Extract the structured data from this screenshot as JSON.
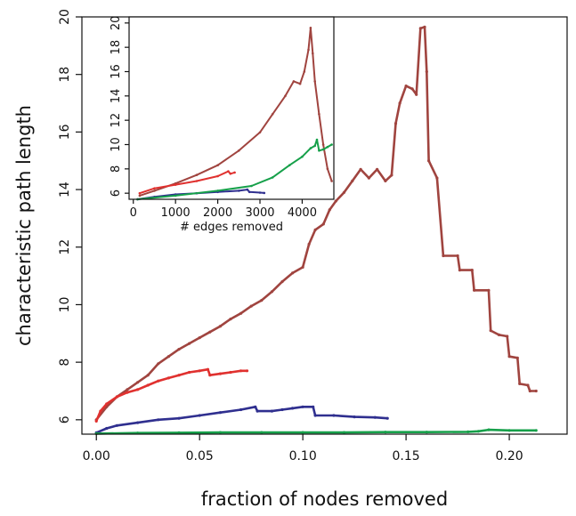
{
  "chart_data": [
    {
      "type": "line",
      "xlabel": "fraction of nodes removed",
      "ylabel": "characteristic path length",
      "xlim": [
        -0.007,
        0.228
      ],
      "ylim": [
        5.5,
        20.0
      ],
      "xticks": [
        0.0,
        0.05,
        0.1,
        0.15,
        0.2
      ],
      "xtick_labels": [
        "0.00",
        "0.05",
        "0.10",
        "0.15",
        "0.20"
      ],
      "yticks": [
        6,
        8,
        10,
        12,
        14,
        16,
        18,
        20
      ],
      "ytick_labels": [
        "6",
        "8",
        "10",
        "12",
        "14",
        "16",
        "18",
        "20"
      ],
      "grid": false,
      "series": [
        {
          "color": "#a0443f",
          "points": [
            [
              0.0,
              6.0
            ],
            [
              0.005,
              6.45
            ],
            [
              0.01,
              6.8
            ],
            [
              0.015,
              7.05
            ],
            [
              0.02,
              7.3
            ],
            [
              0.025,
              7.55
            ],
            [
              0.03,
              7.95
            ],
            [
              0.035,
              8.2
            ],
            [
              0.04,
              8.45
            ],
            [
              0.045,
              8.65
            ],
            [
              0.05,
              8.85
            ],
            [
              0.055,
              9.05
            ],
            [
              0.06,
              9.25
            ],
            [
              0.065,
              9.5
            ],
            [
              0.07,
              9.7
            ],
            [
              0.075,
              9.95
            ],
            [
              0.08,
              10.15
            ],
            [
              0.085,
              10.45
            ],
            [
              0.09,
              10.8
            ],
            [
              0.095,
              11.1
            ],
            [
              0.1,
              11.3
            ],
            [
              0.103,
              12.1
            ],
            [
              0.106,
              12.6
            ],
            [
              0.11,
              12.8
            ],
            [
              0.113,
              13.3
            ],
            [
              0.116,
              13.6
            ],
            [
              0.12,
              13.9
            ],
            [
              0.124,
              14.3
            ],
            [
              0.128,
              14.7
            ],
            [
              0.132,
              14.4
            ],
            [
              0.136,
              14.7
            ],
            [
              0.14,
              14.3
            ],
            [
              0.143,
              14.5
            ],
            [
              0.145,
              16.3
            ],
            [
              0.147,
              17.0
            ],
            [
              0.15,
              17.6
            ],
            [
              0.153,
              17.5
            ],
            [
              0.155,
              17.3
            ],
            [
              0.157,
              19.6
            ],
            [
              0.159,
              19.65
            ],
            [
              0.16,
              18.1
            ],
            [
              0.161,
              15.0
            ],
            [
              0.165,
              14.4
            ],
            [
              0.168,
              11.7
            ],
            [
              0.175,
              11.7
            ],
            [
              0.176,
              11.2
            ],
            [
              0.182,
              11.2
            ],
            [
              0.183,
              10.5
            ],
            [
              0.19,
              10.5
            ],
            [
              0.191,
              9.1
            ],
            [
              0.195,
              8.95
            ],
            [
              0.199,
              8.9
            ],
            [
              0.2,
              8.2
            ],
            [
              0.204,
              8.15
            ],
            [
              0.205,
              7.25
            ],
            [
              0.209,
              7.2
            ],
            [
              0.21,
              7.0
            ],
            [
              0.213,
              7.0
            ]
          ]
        },
        {
          "color": "#e0312f",
          "points": [
            [
              0.0,
              5.95
            ],
            [
              0.002,
              6.3
            ],
            [
              0.005,
              6.55
            ],
            [
              0.01,
              6.8
            ],
            [
              0.015,
              6.95
            ],
            [
              0.02,
              7.05
            ],
            [
              0.025,
              7.2
            ],
            [
              0.03,
              7.35
            ],
            [
              0.035,
              7.45
            ],
            [
              0.04,
              7.55
            ],
            [
              0.045,
              7.65
            ],
            [
              0.05,
              7.7
            ],
            [
              0.054,
              7.75
            ],
            [
              0.055,
              7.55
            ],
            [
              0.06,
              7.6
            ],
            [
              0.065,
              7.65
            ],
            [
              0.07,
              7.7
            ],
            [
              0.073,
              7.7
            ]
          ]
        },
        {
          "color": "#2f2f8f",
          "points": [
            [
              0.0,
              5.55
            ],
            [
              0.005,
              5.7
            ],
            [
              0.01,
              5.8
            ],
            [
              0.02,
              5.9
            ],
            [
              0.03,
              6.0
            ],
            [
              0.04,
              6.05
            ],
            [
              0.05,
              6.15
            ],
            [
              0.06,
              6.25
            ],
            [
              0.07,
              6.35
            ],
            [
              0.077,
              6.45
            ],
            [
              0.078,
              6.3
            ],
            [
              0.085,
              6.3
            ],
            [
              0.09,
              6.35
            ],
            [
              0.095,
              6.4
            ],
            [
              0.1,
              6.45
            ],
            [
              0.105,
              6.45
            ],
            [
              0.106,
              6.15
            ],
            [
              0.115,
              6.15
            ],
            [
              0.125,
              6.1
            ],
            [
              0.135,
              6.08
            ],
            [
              0.141,
              6.05
            ]
          ]
        },
        {
          "color": "#16a04a",
          "points": [
            [
              0.0,
              5.52
            ],
            [
              0.02,
              5.54
            ],
            [
              0.04,
              5.55
            ],
            [
              0.06,
              5.56
            ],
            [
              0.08,
              5.56
            ],
            [
              0.1,
              5.56
            ],
            [
              0.12,
              5.56
            ],
            [
              0.14,
              5.57
            ],
            [
              0.16,
              5.57
            ],
            [
              0.18,
              5.58
            ],
            [
              0.185,
              5.6
            ],
            [
              0.19,
              5.65
            ],
            [
              0.2,
              5.63
            ],
            [
              0.213,
              5.63
            ]
          ]
        }
      ]
    },
    {
      "type": "line",
      "xlabel": "# edges removed",
      "ylabel": "",
      "xlim": [
        -100,
        4750
      ],
      "ylim": [
        5.5,
        20.5
      ],
      "xticks": [
        0,
        1000,
        2000,
        3000,
        4000
      ],
      "xtick_labels": [
        "0",
        "1000",
        "2000",
        "3000",
        "4000"
      ],
      "yticks": [
        6,
        8,
        10,
        12,
        14,
        16,
        18,
        20
      ],
      "ytick_labels": [
        "6",
        "8",
        "10",
        "12",
        "14",
        "16",
        "18",
        "20"
      ],
      "grid": false,
      "series": [
        {
          "color": "#a0443f",
          "points": [
            [
              150,
              5.8
            ],
            [
              500,
              6.2
            ],
            [
              1000,
              6.8
            ],
            [
              1500,
              7.5
            ],
            [
              2000,
              8.3
            ],
            [
              2500,
              9.5
            ],
            [
              3000,
              11.0
            ],
            [
              3300,
              12.5
            ],
            [
              3600,
              14.0
            ],
            [
              3800,
              15.2
            ],
            [
              3950,
              15.0
            ],
            [
              4050,
              16.0
            ],
            [
              4150,
              17.8
            ],
            [
              4200,
              19.6
            ],
            [
              4250,
              17.5
            ],
            [
              4300,
              15.2
            ],
            [
              4400,
              12.5
            ],
            [
              4500,
              10.0
            ],
            [
              4600,
              8.0
            ],
            [
              4700,
              7.0
            ]
          ]
        },
        {
          "color": "#e0312f",
          "points": [
            [
              150,
              6.0
            ],
            [
              500,
              6.4
            ],
            [
              1000,
              6.7
            ],
            [
              1500,
              7.0
            ],
            [
              2000,
              7.4
            ],
            [
              2250,
              7.8
            ],
            [
              2300,
              7.6
            ],
            [
              2400,
              7.7
            ]
          ]
        },
        {
          "color": "#2f2f8f",
          "points": [
            [
              100,
              5.5
            ],
            [
              500,
              5.7
            ],
            [
              1000,
              5.9
            ],
            [
              1500,
              6.0
            ],
            [
              2000,
              6.1
            ],
            [
              2500,
              6.2
            ],
            [
              2700,
              6.3
            ],
            [
              2750,
              6.1
            ],
            [
              3000,
              6.05
            ],
            [
              3100,
              6.02
            ]
          ]
        },
        {
          "color": "#16a04a",
          "points": [
            [
              100,
              5.5
            ],
            [
              1000,
              5.8
            ],
            [
              2000,
              6.2
            ],
            [
              2800,
              6.6
            ],
            [
              3300,
              7.3
            ],
            [
              3700,
              8.3
            ],
            [
              4000,
              9.0
            ],
            [
              4200,
              9.7
            ],
            [
              4300,
              9.9
            ],
            [
              4350,
              10.4
            ],
            [
              4400,
              9.5
            ],
            [
              4500,
              9.6
            ],
            [
              4600,
              9.8
            ],
            [
              4700,
              10.0
            ]
          ]
        }
      ]
    }
  ]
}
